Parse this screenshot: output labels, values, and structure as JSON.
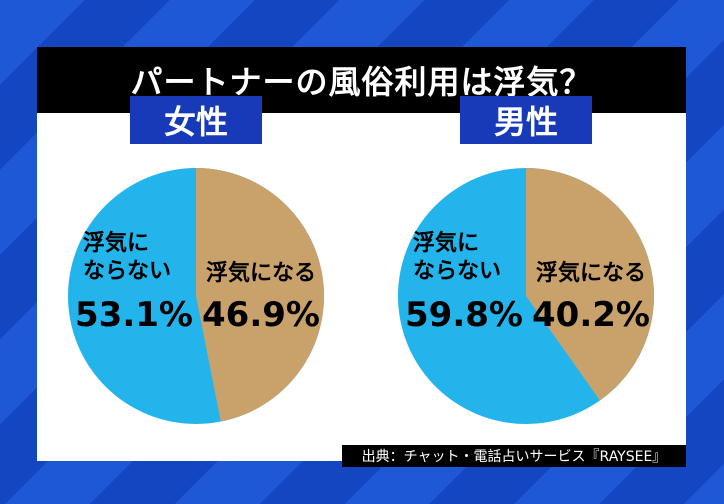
{
  "title": "パートナーの風俗利用は浮気？",
  "source": "出典：チャット・電話占いサービス『RAYSEE』",
  "colors": {
    "yes": "#c9a16b",
    "no": "#22b4ea",
    "tag": "#1839b8"
  },
  "chart_data": [
    {
      "type": "pie",
      "title": "女性",
      "slices": [
        {
          "label": "浮気になる",
          "value": 46.9,
          "display": "46.9%"
        },
        {
          "label_lines": [
            "浮気に",
            "ならない"
          ],
          "value": 53.1,
          "display": "53.1%"
        }
      ]
    },
    {
      "type": "pie",
      "title": "男性",
      "slices": [
        {
          "label": "浮気になる",
          "value": 40.2,
          "display": "40.2%"
        },
        {
          "label_lines": [
            "浮気に",
            "ならない"
          ],
          "value": 59.8,
          "display": "59.8%"
        }
      ]
    }
  ]
}
